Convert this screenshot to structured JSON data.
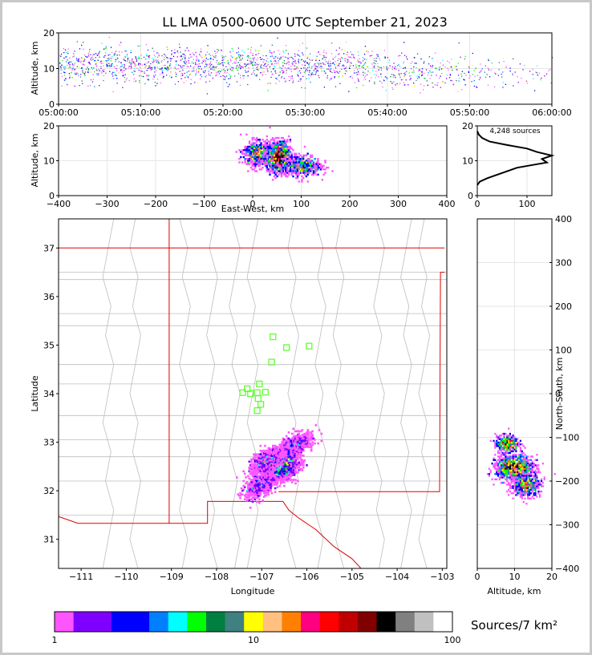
{
  "title": "LL LMA 0500-0600 UTC September 21, 2023",
  "colorbar_unit": "Sources/7 km²",
  "colorbar_ticks": [
    "1",
    "10",
    "100"
  ],
  "colorbar_colors": [
    "#ff55ff",
    "#8000ff",
    "#8000ff",
    "#0000ff",
    "#0000ff",
    "#0080ff",
    "#00ffff",
    "#00ff00",
    "#008040",
    "#408080",
    "#ffff00",
    "#ffc080",
    "#ff8000",
    "#ff0080",
    "#ff0000",
    "#c00000",
    "#800000",
    "#000000",
    "#808080",
    "#c0c0c0",
    "#ffffff"
  ],
  "chart_data": [
    {
      "type": "scatter",
      "panel": "time-height",
      "title": "LL LMA 0500-0600 UTC September 21, 2023",
      "xlabel": "",
      "ylabel": "Altitude, km",
      "xlim": [
        "05:00:00",
        "06:00:00"
      ],
      "ylim": [
        0,
        20
      ],
      "x_ticks": [
        "05:00:00",
        "05:10:00",
        "05:20:00",
        "05:30:00",
        "05:40:00",
        "05:50:00",
        "06:00:00"
      ],
      "y_ticks": [
        "0",
        "10",
        "20"
      ],
      "core_altitude_km": [
        6,
        16
      ]
    },
    {
      "type": "heatmap",
      "panel": "east-west-height",
      "xlabel": "East-West, km",
      "ylabel": "Altitude, km",
      "xlim": [
        -400,
        400
      ],
      "ylim": [
        0,
        20
      ],
      "x_ticks": [
        "−400",
        "−300",
        "−200",
        "−100",
        "0",
        "100",
        "200",
        "300",
        "400"
      ],
      "y_ticks": [
        "0",
        "10",
        "20"
      ],
      "clusters": [
        {
          "x": 10,
          "y": 12,
          "sx": 14,
          "sy": 1.8,
          "weight": 45
        },
        {
          "x": 55,
          "y": 11,
          "sx": 12,
          "sy": 2.2,
          "weight": 90
        },
        {
          "x": 100,
          "y": 8.5,
          "sx": 20,
          "sy": 1.5,
          "weight": 40
        }
      ]
    },
    {
      "type": "line",
      "panel": "altitude-histogram",
      "annotation": "4,248 sources",
      "xlim": [
        0,
        150
      ],
      "ylim": [
        0,
        20
      ],
      "x_ticks": [
        "0",
        "100"
      ],
      "y_ticks": [
        "0",
        "10",
        "20"
      ],
      "profile": [
        [
          0,
          3
        ],
        [
          5,
          4
        ],
        [
          20,
          5
        ],
        [
          40,
          6
        ],
        [
          60,
          7
        ],
        [
          80,
          8
        ],
        [
          120,
          9
        ],
        [
          140,
          9.5
        ],
        [
          130,
          10.5
        ],
        [
          150,
          11.5
        ],
        [
          120,
          12.5
        ],
        [
          100,
          13.5
        ],
        [
          60,
          14.5
        ],
        [
          25,
          15.5
        ],
        [
          10,
          16.5
        ],
        [
          3,
          17.5
        ],
        [
          0,
          18.5
        ]
      ]
    },
    {
      "type": "heatmap",
      "panel": "plan-view",
      "xlabel": "Longitude",
      "ylabel": "Latitude",
      "xlim": [
        -111.5,
        -102.9
      ],
      "ylim": [
        30.4,
        37.6
      ],
      "x_ticks": [
        "−111",
        "−110",
        "−109",
        "−108",
        "−107",
        "−106",
        "−105",
        "−104",
        "−103"
      ],
      "y_ticks": [
        "31",
        "32",
        "33",
        "34",
        "35",
        "36",
        "37"
      ],
      "stations": [
        [
          -106.75,
          35.17
        ],
        [
          -106.45,
          34.95
        ],
        [
          -105.95,
          34.98
        ],
        [
          -106.78,
          34.65
        ],
        [
          -107.05,
          34.2
        ],
        [
          -107.32,
          34.1
        ],
        [
          -107.42,
          34.02
        ],
        [
          -107.25,
          34.0
        ],
        [
          -107.1,
          34.02
        ],
        [
          -106.92,
          34.03
        ],
        [
          -107.08,
          33.9
        ],
        [
          -107.02,
          33.78
        ],
        [
          -107.1,
          33.65
        ]
      ],
      "clusters": [
        {
          "lon": -106.25,
          "lat": 32.95,
          "slon": 0.15,
          "slat": 0.07,
          "weight": 35
        },
        {
          "lon": -106.55,
          "lat": 32.5,
          "slon": 0.15,
          "slat": 0.12,
          "weight": 95
        },
        {
          "lon": -106.9,
          "lat": 32.6,
          "slon": 0.12,
          "slat": 0.1,
          "weight": 40
        },
        {
          "lon": -107.05,
          "lat": 32.1,
          "slon": 0.12,
          "slat": 0.1,
          "weight": 30
        }
      ]
    },
    {
      "type": "heatmap",
      "panel": "north-south-height",
      "xlabel": "Altitude, km",
      "ylabel": "North-South, km",
      "xlim": [
        0,
        20
      ],
      "ylim": [
        -400,
        400
      ],
      "x_ticks": [
        "0",
        "10",
        "20"
      ],
      "y_ticks": [
        "400",
        "300",
        "200",
        "100",
        "0",
        "−100",
        "−200",
        "−300",
        "−400"
      ],
      "clusters": [
        {
          "x": 8,
          "y": -115,
          "sx": 1.5,
          "sy": 10,
          "weight": 35
        },
        {
          "x": 10,
          "y": -170,
          "sx": 2.5,
          "sy": 14,
          "weight": 90
        },
        {
          "x": 13,
          "y": -210,
          "sx": 2,
          "sy": 12,
          "weight": 40
        }
      ]
    }
  ]
}
